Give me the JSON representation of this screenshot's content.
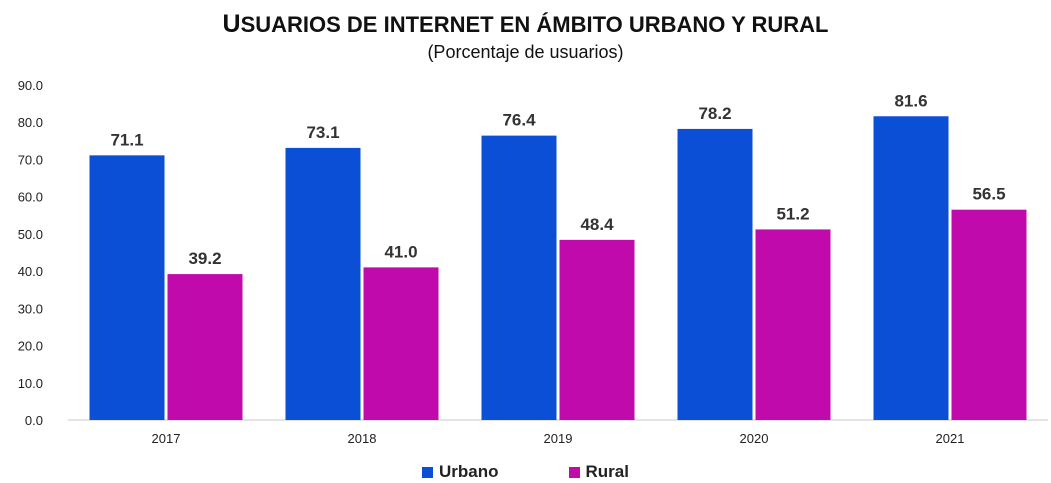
{
  "chart_data": {
    "type": "bar",
    "title": "Usuarios de internet en ámbito urbano y rural",
    "subtitle": "(Porcentaje de usuarios)",
    "categories": [
      "2017",
      "2018",
      "2019",
      "2020",
      "2021"
    ],
    "series": [
      {
        "name": "Urbano",
        "color": "#0b4fd6",
        "values": [
          71.1,
          73.1,
          76.4,
          78.2,
          81.6
        ],
        "labels": [
          "71.1",
          "73.1",
          "76.4",
          "78.2",
          "81.6"
        ]
      },
      {
        "name": "Rural",
        "color": "#c00aac",
        "values": [
          39.2,
          41.0,
          48.4,
          51.2,
          56.5
        ],
        "labels": [
          "39.2",
          "41.0",
          "48.4",
          "51.2",
          "56.5"
        ]
      }
    ],
    "ylim": [
      0,
      90
    ],
    "yticks": [
      "0.0",
      "10.0",
      "20.0",
      "30.0",
      "40.0",
      "50.0",
      "60.0",
      "70.0",
      "80.0",
      "90.0"
    ],
    "grid": false,
    "legend_position": "bottom"
  }
}
